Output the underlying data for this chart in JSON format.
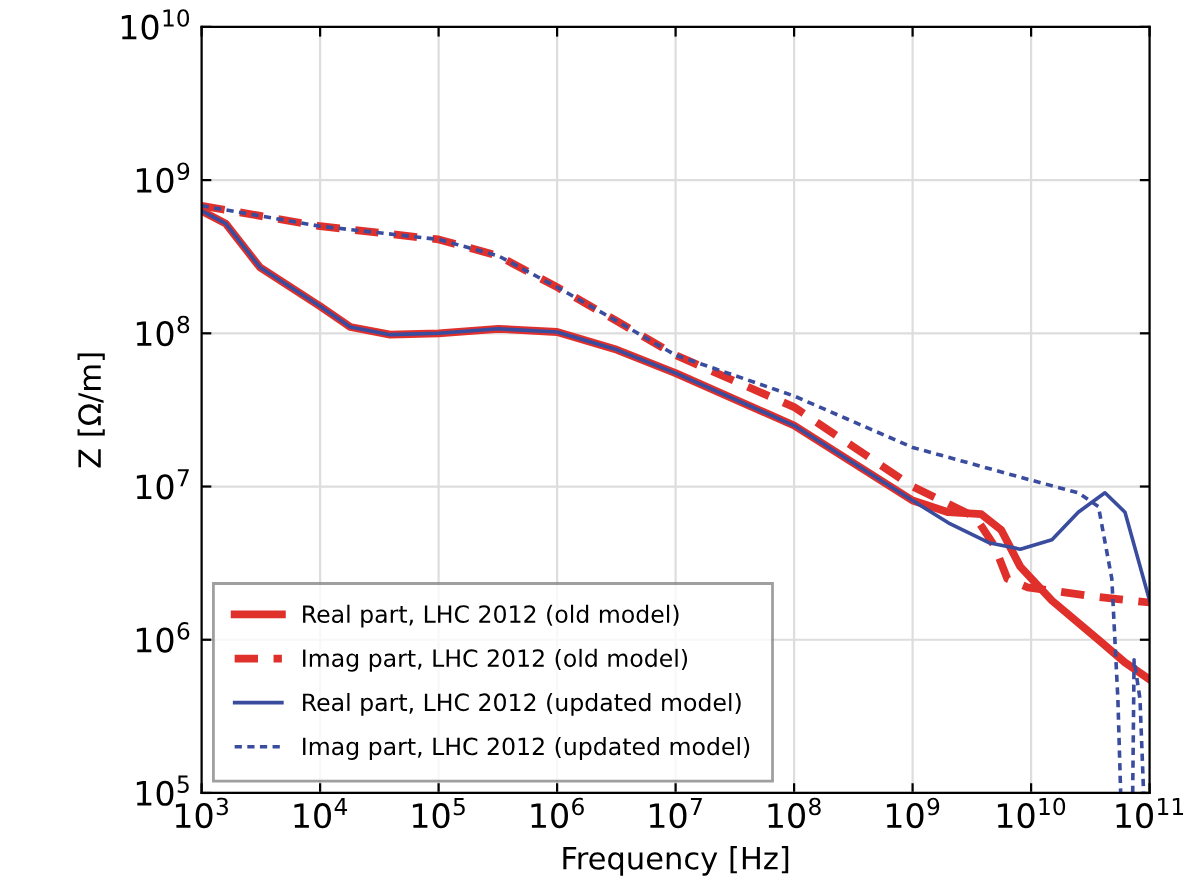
{
  "chart_data": {
    "type": "line",
    "xlabel": "Frequency [Hz]",
    "ylabel": "Z [Ω/m]",
    "log": "xy",
    "grid": true,
    "legend": "bottom left",
    "xlim": [
      1000.0,
      100000000000.0
    ],
    "ylim": [
      100000.0,
      10000000000.0
    ],
    "xticks": [
      {
        "value": 1000.0,
        "label": "10$^{3}$"
      },
      {
        "value": 10000.0,
        "label": "10$^{4}$"
      },
      {
        "value": 100000.0,
        "label": "10$^{5}$"
      },
      {
        "value": 1000000.0,
        "label": "10$^{6}$"
      },
      {
        "value": 10000000.0,
        "label": "10$^{7}$"
      },
      {
        "value": 100000000.0,
        "label": "10$^{8}$"
      },
      {
        "value": 1000000000.0,
        "label": "10$^{9}$"
      },
      {
        "value": 10000000000.0,
        "label": "10$^{10}$"
      },
      {
        "value": 100000000000.0,
        "label": "10$^{11}$"
      }
    ],
    "yticks": [
      {
        "value": 100000.0,
        "label": "10$^{5}$"
      },
      {
        "value": 1000000.0,
        "label": "10$^{6}$"
      },
      {
        "value": 10000000.0,
        "label": "10$^{7}$"
      },
      {
        "value": 100000000.0,
        "label": "10$^{8}$"
      },
      {
        "value": 1000000000.0,
        "label": "10$^{9}$"
      },
      {
        "value": 10000000000.0,
        "label": "10$^{10}$"
      }
    ],
    "series": [
      {
        "name": "Real part, LHC 2012 (old model)",
        "color": "#e0302c",
        "line_style": "solid",
        "x": [
          1000.0,
          1600.0,
          3100.0,
          10000.0,
          18000.0,
          39000.0,
          100000.0,
          320000.0,
          1000000.0,
          3200000.0,
          10000000.0,
          100000000.0,
          1000000000.0,
          2000000000.0,
          3800000000.0,
          5600000000.0,
          8100000000.0,
          15000000000.0,
          37000000000.0,
          62000000000.0,
          100000000000.0
        ],
        "values": [
          630000000.0,
          520000000.0,
          270000000.0,
          150000000.0,
          110000000.0,
          98000000.0,
          100000000.0,
          107000000.0,
          102000000.0,
          78000000.0,
          55000000.0,
          25000000.0,
          8100000.0,
          6800000.0,
          6600000.0,
          5200000.0,
          3000000.0,
          1800000.0,
          1000000.0,
          710000.0,
          550000.0
        ]
      },
      {
        "name": "Imag part, LHC 2012 (old model)",
        "color": "#e0302c",
        "line_style": "dashed",
        "x": [
          1000.0,
          10000.0,
          100000.0,
          320000.0,
          1000000.0,
          3200000.0,
          10000000.0,
          100000000.0,
          1000000000.0,
          3400000000.0,
          4900000000.0,
          6300000000.0,
          9300000000.0,
          37000000000.0,
          100000000000.0
        ],
        "values": [
          680000000.0,
          500000000.0,
          410000000.0,
          320000000.0,
          200000000.0,
          120000000.0,
          72000000.0,
          33000000.0,
          10000000.0,
          6300000.0,
          4100000.0,
          2500000.0,
          2200000.0,
          1900000.0,
          1750000.0
        ]
      },
      {
        "name": "Real part, LHC 2012 (updated model)",
        "color": "#3a4c9e",
        "line_style": "solid",
        "x": [
          1000.0,
          1600.0,
          3100.0,
          10000.0,
          18000.0,
          39000.0,
          100000.0,
          320000.0,
          1000000.0,
          3200000.0,
          10000000.0,
          100000000.0,
          1000000000.0,
          2000000000.0,
          4400000000.0,
          8100000000.0,
          15000000000.0,
          25000000000.0,
          42000000000.0,
          62000000000.0,
          100000000000.0
        ],
        "values": [
          630000000.0,
          520000000.0,
          270000000.0,
          150000000.0,
          110000000.0,
          98000000.0,
          100000000.0,
          107000000.0,
          102000000.0,
          78000000.0,
          55000000.0,
          25000000.0,
          8100000.0,
          5800000.0,
          4300000.0,
          3900000.0,
          4500000.0,
          6800000.0,
          9100000.0,
          6800000.0,
          1800000.0
        ]
      },
      {
        "name": "Imag part, LHC 2012 (updated model)",
        "color": "#3a4c9e",
        "line_style": "dotted",
        "x": [
          1000.0,
          10000.0,
          100000.0,
          320000.0,
          1000000.0,
          3200000.0,
          10000000.0,
          100000000.0,
          1000000000.0,
          10000000000.0,
          25000000000.0,
          37000000000.0,
          48000000000.0,
          54000000000.0,
          57000000000.0,
          66000000000.0,
          72000000000.0,
          74000000000.0,
          83000000000.0,
          89000000000.0
        ],
        "values": [
          680000000.0,
          500000000.0,
          410000000.0,
          320000000.0,
          200000000.0,
          120000000.0,
          72000000.0,
          39000000.0,
          18000000.0,
          11000000.0,
          9100000.0,
          7400000.0,
          2500000.0,
          410000.0,
          100000.0,
          null,
          100000.0,
          740000.0,
          410000.0,
          100000.0
        ]
      }
    ]
  }
}
